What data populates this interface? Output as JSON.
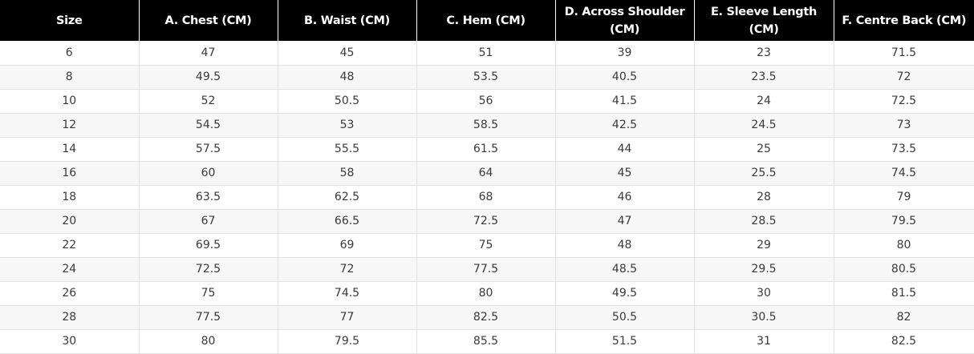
{
  "table": {
    "headers": [
      "Size",
      "A. Chest (CM)",
      "B. Waist (CM)",
      "C. Hem (CM)",
      "D. Across Shoulder (CM)",
      "E. Sleeve Length (CM)",
      "F. Centre Back (CM)"
    ],
    "rows": [
      [
        "6",
        "47",
        "45",
        "51",
        "39",
        "23",
        "71.5"
      ],
      [
        "8",
        "49.5",
        "48",
        "53.5",
        "40.5",
        "23.5",
        "72"
      ],
      [
        "10",
        "52",
        "50.5",
        "56",
        "41.5",
        "24",
        "72.5"
      ],
      [
        "12",
        "54.5",
        "53",
        "58.5",
        "42.5",
        "24.5",
        "73"
      ],
      [
        "14",
        "57.5",
        "55.5",
        "61.5",
        "44",
        "25",
        "73.5"
      ],
      [
        "16",
        "60",
        "58",
        "64",
        "45",
        "25.5",
        "74.5"
      ],
      [
        "18",
        "63.5",
        "62.5",
        "68",
        "46",
        "28",
        "79"
      ],
      [
        "20",
        "67",
        "66.5",
        "72.5",
        "47",
        "28.5",
        "79.5"
      ],
      [
        "22",
        "69.5",
        "69",
        "75",
        "48",
        "29",
        "80"
      ],
      [
        "24",
        "72.5",
        "72",
        "77.5",
        "48.5",
        "29.5",
        "80.5"
      ],
      [
        "26",
        "75",
        "74.5",
        "80",
        "49.5",
        "30",
        "81.5"
      ],
      [
        "28",
        "77.5",
        "77",
        "82.5",
        "50.5",
        "30.5",
        "82"
      ],
      [
        "30",
        "80",
        "79.5",
        "85.5",
        "51.5",
        "31",
        "82.5"
      ]
    ]
  },
  "colors": {
    "header_bg": "#000000",
    "header_text": "#ffffff",
    "row_alt_bg": "#f7f7f7",
    "cell_text": "#3a3a3a"
  }
}
